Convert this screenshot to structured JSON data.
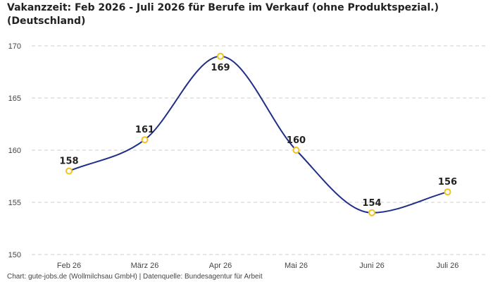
{
  "title": "Vakanzzeit: Feb 2026 - Juli 2026 für Berufe im Verkauf (ohne Produktspezial.) (Deutschland)",
  "source": "Chart: gute-jobs.de (Wollmilchsau GmbH) | Datenquelle: Bundesagentur für Arbeit",
  "colors": {
    "line": "#1f2f8a",
    "marker_stroke": "#f2c21b",
    "marker_fill": "#ffffff",
    "grid": "#cccccc"
  },
  "chart_data": {
    "type": "line",
    "categories": [
      "Feb 26",
      "März 26",
      "Apr 26",
      "Mai 26",
      "Juni 26",
      "Juli 26"
    ],
    "values": [
      158,
      161,
      169,
      160,
      154,
      156
    ],
    "data_labels": [
      "158",
      "161",
      "169",
      "160",
      "154",
      "156"
    ],
    "ylim": [
      150,
      170
    ],
    "yticks": [
      150,
      155,
      160,
      165,
      170
    ],
    "grid": true,
    "grid_style": "dashed-horizontal",
    "legend": "none",
    "smooth": true
  }
}
